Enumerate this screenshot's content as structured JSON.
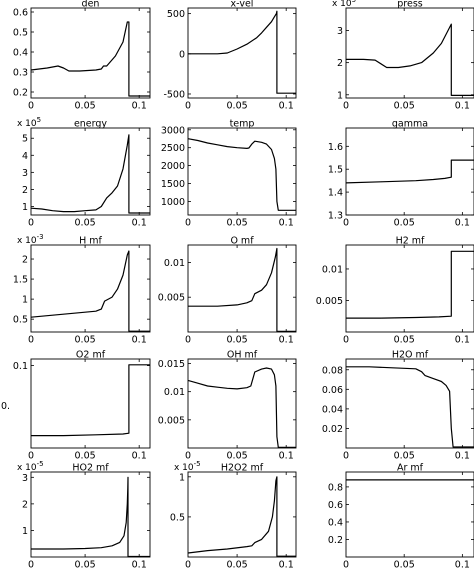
{
  "chart_data": [
    {
      "id": "den",
      "type": "line",
      "title": "den",
      "xlim": [
        0,
        0.11
      ],
      "ylim": [
        0.17,
        0.62
      ],
      "xticks": [
        0.05,
        0.1
      ],
      "xtick_labels": [
        "0.05",
        "0.1"
      ],
      "yticks": [
        0.2,
        0.3,
        0.4,
        0.5,
        0.6
      ],
      "ytick_labels": [
        "0.2",
        "0.3",
        "0.4",
        "0.5",
        "0.6"
      ],
      "series": [
        {
          "x": [
            0,
            0.015,
            0.025,
            0.03,
            0.035,
            0.045,
            0.06,
            0.065,
            0.067,
            0.07,
            0.078,
            0.085,
            0.089,
            0.0905,
            0.0905,
            0.11
          ],
          "y": [
            0.31,
            0.32,
            0.33,
            0.32,
            0.305,
            0.305,
            0.31,
            0.315,
            0.33,
            0.33,
            0.38,
            0.45,
            0.55,
            0.55,
            0.18,
            0.18
          ]
        }
      ]
    },
    {
      "id": "x-vel",
      "type": "line",
      "title": "x-vel",
      "xlim": [
        0,
        0.11
      ],
      "ylim": [
        -550,
        570
      ],
      "xticks": [
        0.05,
        0.1
      ],
      "xtick_labels": [
        "0.05",
        "0.1"
      ],
      "yticks": [
        -500,
        0,
        500
      ],
      "ytick_labels": [
        "-500",
        "0",
        "500"
      ],
      "series": [
        {
          "x": [
            0,
            0.03,
            0.04,
            0.05,
            0.06,
            0.07,
            0.075,
            0.08,
            0.085,
            0.088,
            0.09,
            0.0905,
            0.0905,
            0.11
          ],
          "y": [
            0,
            0,
            10,
            60,
            120,
            200,
            260,
            330,
            400,
            460,
            500,
            530,
            -490,
            -490
          ]
        }
      ]
    },
    {
      "id": "press",
      "type": "line",
      "title": "press",
      "exponent_label": "x 10",
      "exponent_power": "5",
      "xlim": [
        0,
        0.11
      ],
      "ylim": [
        0.9,
        3.7
      ],
      "xticks": [
        0.05,
        0.1
      ],
      "xtick_labels": [
        "0.05",
        "0.1"
      ],
      "yticks": [
        1,
        2,
        3
      ],
      "ytick_labels": [
        "1",
        "2",
        "3"
      ],
      "series": [
        {
          "x": [
            0,
            0.015,
            0.025,
            0.035,
            0.045,
            0.055,
            0.065,
            0.075,
            0.082,
            0.087,
            0.0905,
            0.0905,
            0.11
          ],
          "y": [
            2.1,
            2.1,
            2.08,
            1.85,
            1.85,
            1.9,
            2.0,
            2.3,
            2.6,
            2.95,
            3.2,
            0.98,
            0.98
          ]
        }
      ]
    },
    {
      "id": "energy",
      "type": "line",
      "title": "energy",
      "exponent_label": "x 10",
      "exponent_power": "5",
      "xlim": [
        0,
        0.11
      ],
      "ylim": [
        0.5,
        5.6
      ],
      "xticks": [
        0.05,
        0.1
      ],
      "xtick_labels": [
        "0.05",
        "0.1"
      ],
      "yticks": [
        1,
        2,
        3,
        4,
        5
      ],
      "ytick_labels": [
        "1",
        "2",
        "3",
        "4",
        "5"
      ],
      "series": [
        {
          "x": [
            0,
            0.01,
            0.02,
            0.03,
            0.04,
            0.05,
            0.06,
            0.065,
            0.07,
            0.075,
            0.08,
            0.085,
            0.089,
            0.0905,
            0.0905,
            0.11
          ],
          "y": [
            0.9,
            0.85,
            0.75,
            0.7,
            0.7,
            0.75,
            0.8,
            1.0,
            1.5,
            1.8,
            2.2,
            3.2,
            4.6,
            5.2,
            0.62,
            0.62
          ]
        }
      ]
    },
    {
      "id": "temp",
      "type": "line",
      "title": "temp",
      "xlim": [
        0,
        0.11
      ],
      "ylim": [
        620,
        3050
      ],
      "xticks": [
        0.05,
        0.1
      ],
      "xtick_labels": [
        "0.05",
        "0.1"
      ],
      "yticks": [
        1000,
        1500,
        2000,
        2500,
        3000
      ],
      "ytick_labels": [
        "1000",
        "1500",
        "2000",
        "2500",
        "3000"
      ],
      "series": [
        {
          "x": [
            0,
            0.01,
            0.02,
            0.03,
            0.04,
            0.05,
            0.06,
            0.062,
            0.065,
            0.068,
            0.075,
            0.08,
            0.085,
            0.088,
            0.0895,
            0.0905,
            0.092,
            0.11
          ],
          "y": [
            2750,
            2700,
            2630,
            2580,
            2530,
            2500,
            2480,
            2490,
            2600,
            2680,
            2650,
            2600,
            2450,
            2200,
            1900,
            1000,
            750,
            750
          ]
        }
      ]
    },
    {
      "id": "gamma",
      "type": "line",
      "title": "gamma",
      "xlim": [
        0,
        0.11
      ],
      "ylim": [
        1.3,
        1.68
      ],
      "xticks": [
        0.05,
        0.1
      ],
      "xtick_labels": [
        "0.05",
        "0.1"
      ],
      "yticks": [
        1.3,
        1.4,
        1.5,
        1.6
      ],
      "ytick_labels": [
        "1.3",
        "1.4",
        "1.5",
        "1.6"
      ],
      "series": [
        {
          "x": [
            0,
            0.03,
            0.06,
            0.075,
            0.085,
            0.0905,
            0.0905,
            0.11
          ],
          "y": [
            1.44,
            1.445,
            1.45,
            1.455,
            1.46,
            1.465,
            1.54,
            1.54
          ]
        }
      ]
    },
    {
      "id": "H mf",
      "type": "line",
      "title": "H mf",
      "exponent_label": "x 10",
      "exponent_power": "-3",
      "xlim": [
        0,
        0.11
      ],
      "ylim": [
        0.18,
        2.35
      ],
      "xticks": [
        0.05,
        0.1
      ],
      "xtick_labels": [
        "0.05",
        "0.1"
      ],
      "yticks": [
        0.5,
        1,
        1.5,
        2
      ],
      "ytick_labels": [
        "0.5",
        "1",
        "1.5",
        "2"
      ],
      "series": [
        {
          "x": [
            0,
            0.02,
            0.04,
            0.06,
            0.065,
            0.068,
            0.075,
            0.08,
            0.085,
            0.089,
            0.0905,
            0.0905,
            0.11
          ],
          "y": [
            0.55,
            0.6,
            0.65,
            0.7,
            0.75,
            0.95,
            1.05,
            1.25,
            1.6,
            2.1,
            2.2,
            0.2,
            0.2
          ]
        }
      ]
    },
    {
      "id": "O mf",
      "type": "line",
      "title": "O mf",
      "xlim": [
        0,
        0.11
      ],
      "ylim": [
        0,
        0.0125
      ],
      "xticks": [
        0.05,
        0.1
      ],
      "xtick_labels": [
        "0.05",
        "0.1"
      ],
      "yticks": [
        0.005,
        0.01
      ],
      "ytick_labels": [
        "0.005",
        "0.01"
      ],
      "series": [
        {
          "x": [
            0,
            0.03,
            0.05,
            0.06,
            0.065,
            0.068,
            0.075,
            0.08,
            0.085,
            0.089,
            0.0905,
            0.0905,
            0.11
          ],
          "y": [
            0.0037,
            0.0037,
            0.0039,
            0.0042,
            0.0045,
            0.0055,
            0.006,
            0.0068,
            0.0085,
            0.0108,
            0.012,
            0.0001,
            0.0001
          ]
        }
      ]
    },
    {
      "id": "H2 mf",
      "type": "line",
      "title": "H2 mf",
      "xlim": [
        0,
        0.11
      ],
      "ylim": [
        0,
        0.0138
      ],
      "xticks": [
        0.05,
        0.1
      ],
      "xtick_labels": [
        "0.05",
        "0.1"
      ],
      "yticks": [
        0.005,
        0.01
      ],
      "ytick_labels": [
        "0.005",
        "0.01"
      ],
      "series": [
        {
          "x": [
            0,
            0.03,
            0.06,
            0.08,
            0.0905,
            0.0905,
            0.11
          ],
          "y": [
            0.0022,
            0.0022,
            0.0023,
            0.0024,
            0.0025,
            0.0128,
            0.0128
          ]
        }
      ]
    },
    {
      "id": "O2 mf",
      "type": "line",
      "title": "O2 mf",
      "ytick_prefix": "0.",
      "xlim": [
        0,
        0.11
      ],
      "ylim": [
        0,
        0.108
      ],
      "xticks": [
        0.05,
        0.1
      ],
      "xtick_labels": [
        "0.05",
        "0.1"
      ],
      "yticks": [
        0.1
      ],
      "ytick_labels": [
        "0.1"
      ],
      "series": [
        {
          "x": [
            0,
            0.03,
            0.06,
            0.085,
            0.0905,
            0.0905,
            0.11
          ],
          "y": [
            0.015,
            0.015,
            0.016,
            0.017,
            0.018,
            0.101,
            0.101
          ]
        }
      ]
    },
    {
      "id": "OH mf",
      "type": "line",
      "title": "OH mf",
      "xlim": [
        0,
        0.11
      ],
      "ylim": [
        0,
        0.0158
      ],
      "xticks": [
        0.05,
        0.1
      ],
      "xtick_labels": [
        "0.05",
        "0.1"
      ],
      "yticks": [
        0.005,
        0.01,
        0.015
      ],
      "ytick_labels": [
        "0.005",
        "0.01",
        "0.015"
      ],
      "series": [
        {
          "x": [
            0,
            0.01,
            0.02,
            0.03,
            0.04,
            0.05,
            0.06,
            0.064,
            0.068,
            0.075,
            0.08,
            0.085,
            0.088,
            0.0895,
            0.0905,
            0.092,
            0.11
          ],
          "y": [
            0.012,
            0.0115,
            0.011,
            0.0108,
            0.0106,
            0.0105,
            0.0107,
            0.011,
            0.0135,
            0.014,
            0.0142,
            0.014,
            0.013,
            0.011,
            0.002,
            0.0001,
            0.0001
          ]
        }
      ]
    },
    {
      "id": "H2O mf",
      "type": "line",
      "title": "H2O mf",
      "xlim": [
        0,
        0.11
      ],
      "ylim": [
        0,
        0.091
      ],
      "xticks": [
        0.05,
        0.1
      ],
      "xtick_labels": [
        "0.05",
        "0.1"
      ],
      "yticks": [
        0.02,
        0.04,
        0.06,
        0.08
      ],
      "ytick_labels": [
        "0.02",
        "0.04",
        "0.06",
        "0.08"
      ],
      "series": [
        {
          "x": [
            0,
            0.02,
            0.04,
            0.06,
            0.065,
            0.068,
            0.075,
            0.082,
            0.086,
            0.089,
            0.0905,
            0.092,
            0.11
          ],
          "y": [
            0.083,
            0.083,
            0.082,
            0.081,
            0.078,
            0.074,
            0.071,
            0.068,
            0.064,
            0.058,
            0.02,
            0.001,
            0.001
          ]
        }
      ]
    },
    {
      "id": "HO2 mf",
      "type": "line",
      "title": "HO2 mf",
      "exponent_label": "x 10",
      "exponent_power": "-5",
      "xlim": [
        0,
        0.11
      ],
      "ylim": [
        0,
        3.2
      ],
      "xticks": [
        0.05,
        0.1
      ],
      "xtick_labels": [
        "0.05",
        "0.1"
      ],
      "yticks": [
        1,
        2,
        3
      ],
      "ytick_labels": [
        "1",
        "2",
        "3"
      ],
      "series": [
        {
          "x": [
            0,
            0.03,
            0.05,
            0.065,
            0.075,
            0.082,
            0.086,
            0.088,
            0.089,
            0.0895,
            0.0897,
            0.0897,
            0.11
          ],
          "y": [
            0.3,
            0.3,
            0.32,
            0.35,
            0.42,
            0.55,
            0.8,
            1.3,
            2.0,
            2.6,
            3.0,
            0.02,
            0.02
          ]
        }
      ]
    },
    {
      "id": "H2O2 mf",
      "type": "line",
      "title": "H2O2 mf",
      "exponent_label": "x 10",
      "exponent_power": "-5",
      "xlim": [
        0,
        0.11
      ],
      "ylim": [
        0,
        1.06
      ],
      "xticks": [
        0.05,
        0.1
      ],
      "xtick_labels": [
        "0.05",
        "0.1"
      ],
      "yticks": [
        0.5,
        1
      ],
      "ytick_labels": [
        "0.5",
        "1"
      ],
      "series": [
        {
          "x": [
            0,
            0.02,
            0.04,
            0.06,
            0.065,
            0.068,
            0.075,
            0.082,
            0.086,
            0.088,
            0.0895,
            0.0905,
            0.0905,
            0.11
          ],
          "y": [
            0.05,
            0.08,
            0.1,
            0.13,
            0.14,
            0.18,
            0.22,
            0.32,
            0.5,
            0.7,
            0.95,
            1.0,
            0.01,
            0.01
          ]
        }
      ]
    },
    {
      "id": "Ar mf",
      "type": "line",
      "title": "Ar mf",
      "xlim": [
        0,
        0.11
      ],
      "ylim": [
        0,
        0.97
      ],
      "xticks": [
        0.05,
        0.1
      ],
      "xtick_labels": [
        "0.05",
        "0.1"
      ],
      "yticks": [
        0.2,
        0.4,
        0.6,
        0.8
      ],
      "ytick_labels": [
        "0.2",
        "0.4",
        "0.6",
        "0.8"
      ],
      "series": [
        {
          "x": [
            0,
            0.11
          ],
          "y": [
            0.88,
            0.88
          ]
        }
      ]
    }
  ]
}
